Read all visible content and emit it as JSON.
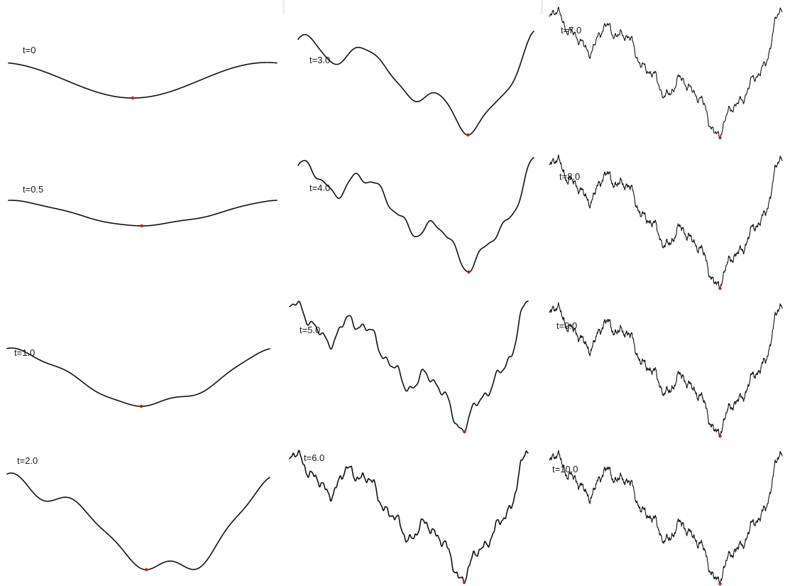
{
  "colors": {
    "curve": "#111111",
    "minimum_marker": "#e01010",
    "background": "#ffffff"
  },
  "panels": [
    {
      "id": "p0",
      "label": "t=0",
      "t": 0.0
    },
    {
      "id": "p1",
      "label": "t=0.5",
      "t": 0.5
    },
    {
      "id": "p2",
      "label": "t=1.0",
      "t": 1.0
    },
    {
      "id": "p3",
      "label": "t=2.0",
      "t": 2.0
    },
    {
      "id": "p4",
      "label": "t=3.0",
      "t": 3.0
    },
    {
      "id": "p5",
      "label": "t=4.0",
      "t": 4.0
    },
    {
      "id": "p6",
      "label": "t=5.0",
      "t": 5.0
    },
    {
      "id": "p7",
      "label": "t=6.0",
      "t": 6.0
    },
    {
      "id": "p8",
      "label": "t=7.0",
      "t": 7.0
    },
    {
      "id": "p9",
      "label": "t=8.0",
      "t": 8.0
    },
    {
      "id": "p10",
      "label": "t=9.0",
      "t": 9.0
    },
    {
      "id": "p11",
      "label": "t=10.0",
      "t": 10.0
    }
  ]
}
